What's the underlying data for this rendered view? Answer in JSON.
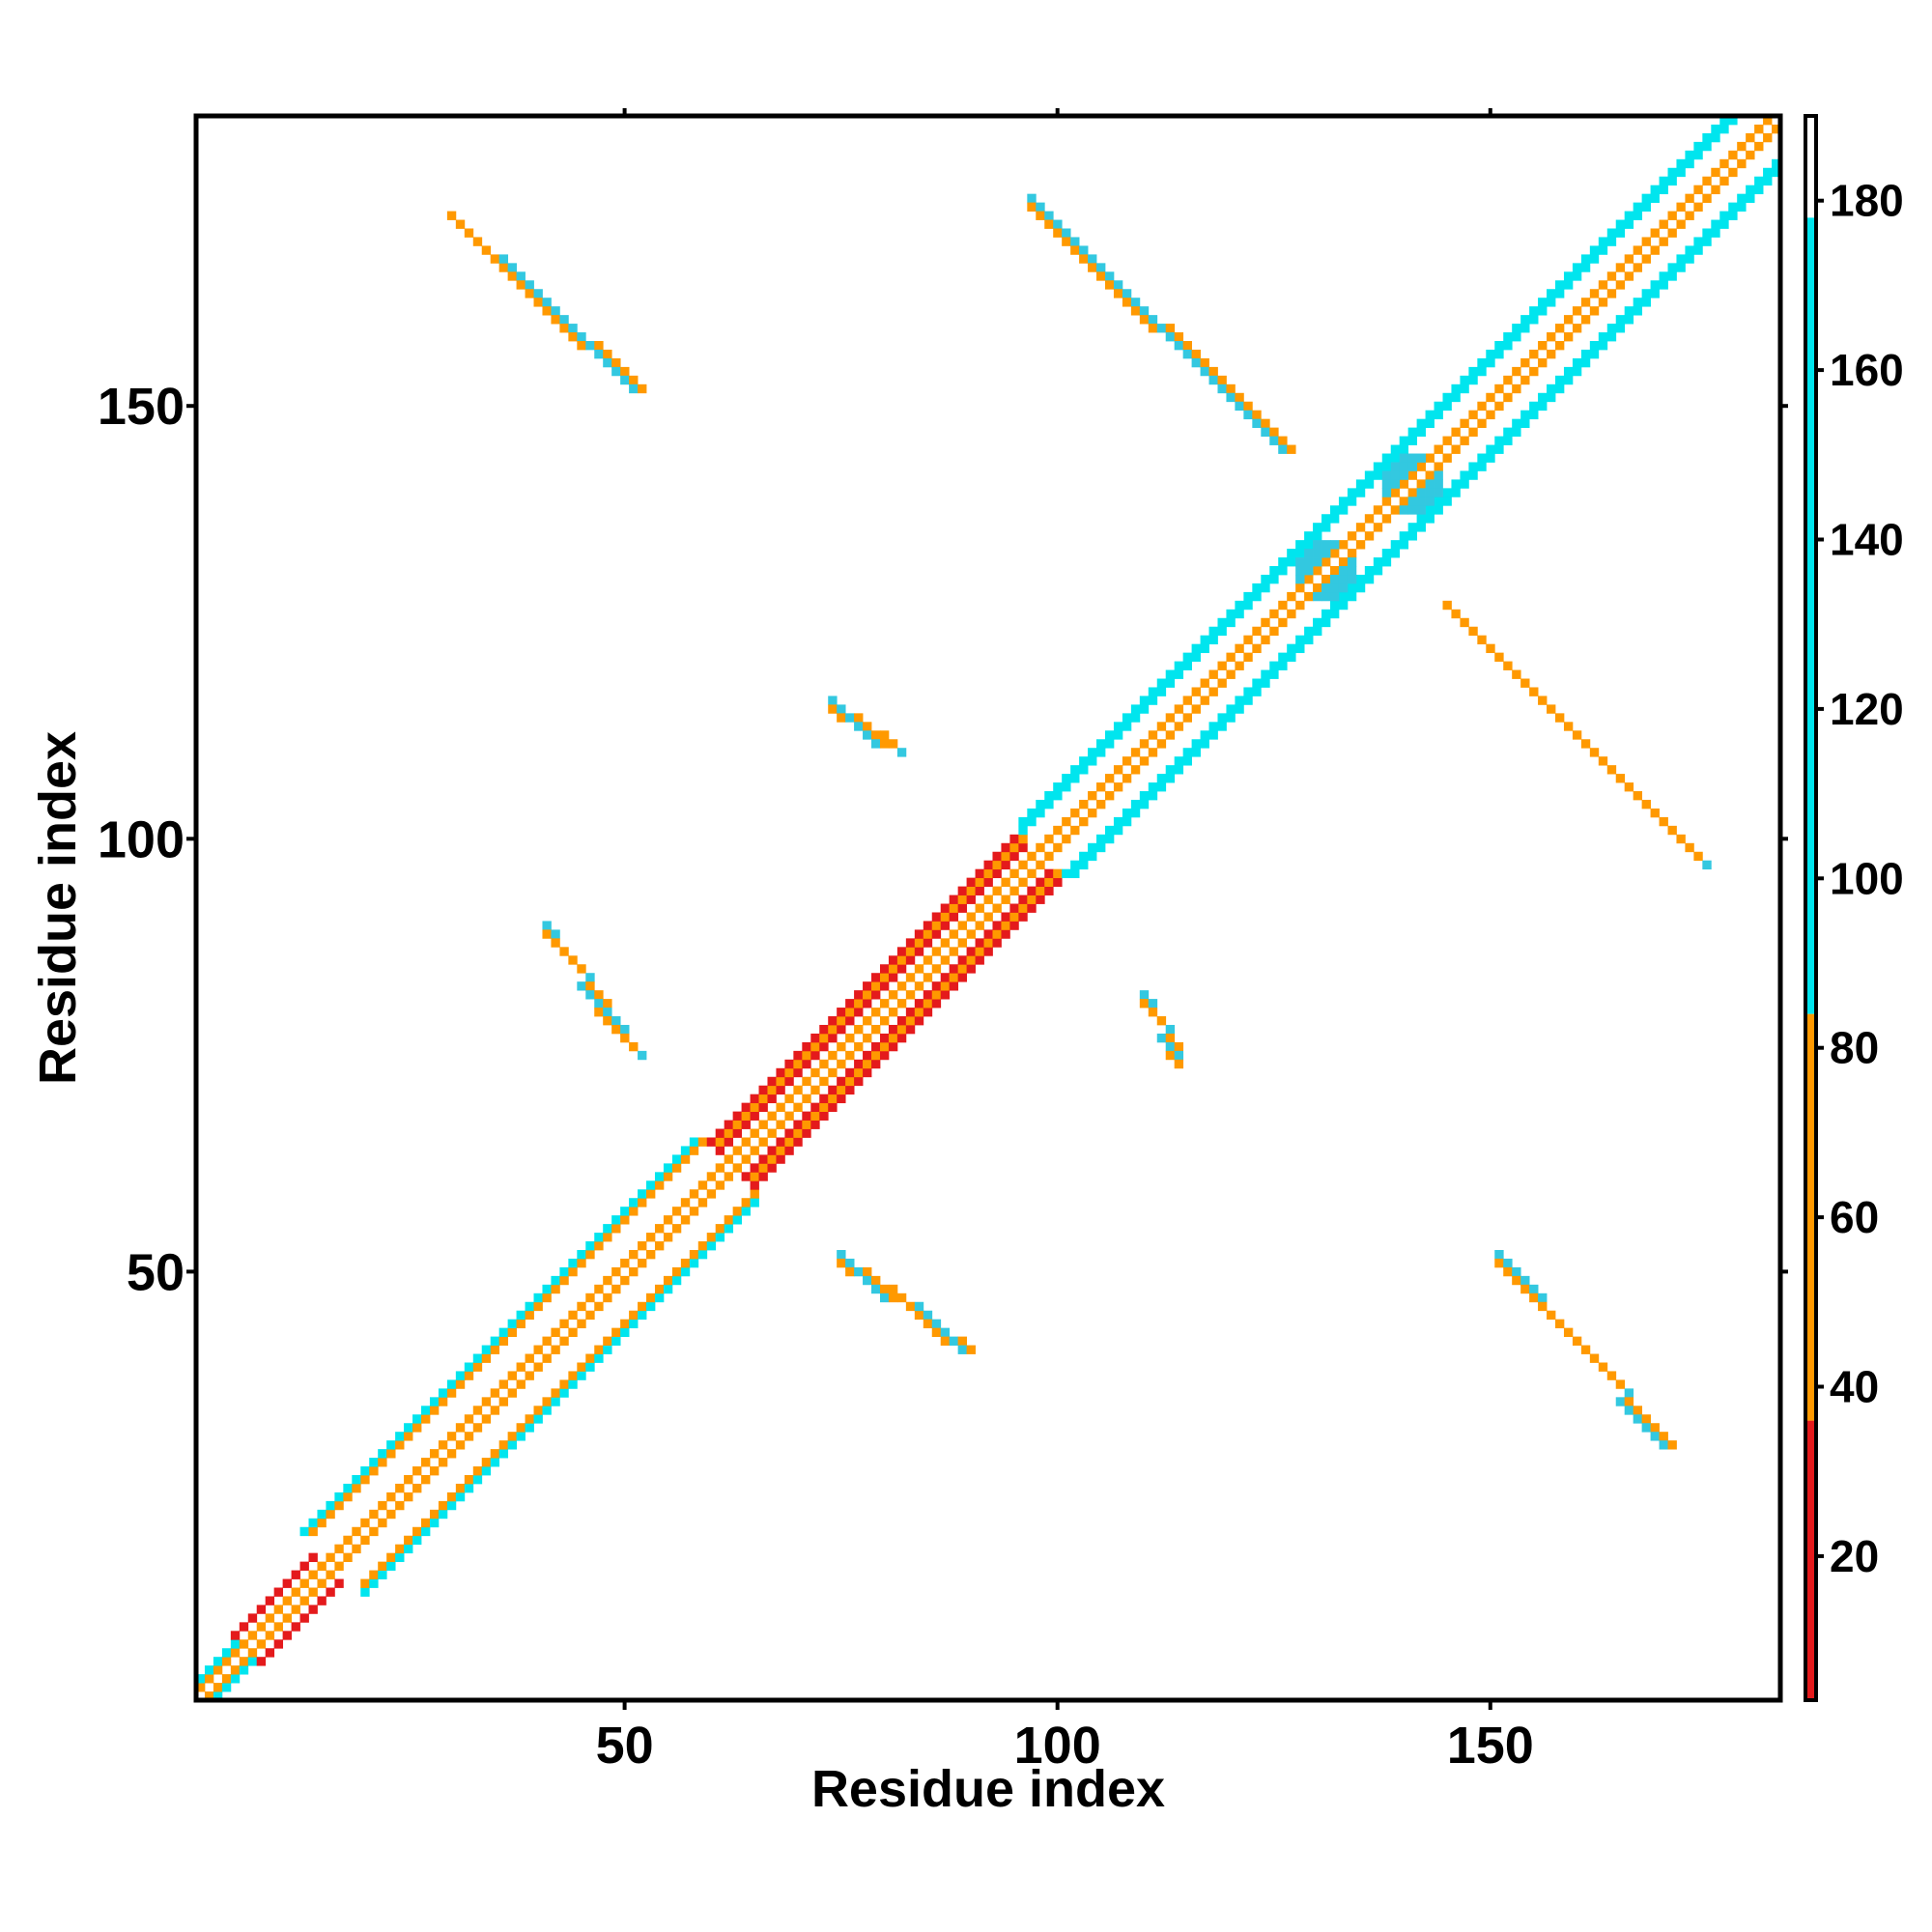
{
  "chart_data": {
    "type": "heatmap",
    "title": "",
    "xlabel": "Residue index",
    "ylabel": "Residue index",
    "xlim": [
      1,
      183
    ],
    "ylim": [
      1,
      183
    ],
    "x_ticks": [
      50,
      100,
      150
    ],
    "y_ticks": [
      50,
      100,
      150
    ],
    "grid": false,
    "colorbar": {
      "position": "right",
      "range": [
        3,
        190
      ],
      "ticks": [
        20,
        40,
        60,
        80,
        100,
        120,
        140,
        160,
        180
      ],
      "bands": [
        {
          "from": 3,
          "to": 36,
          "color": "#e41a1c"
        },
        {
          "from": 36,
          "to": 84,
          "color": "#ff9900"
        },
        {
          "from": 84,
          "to": 178,
          "color": "#00e5ee"
        },
        {
          "from": 178,
          "to": 190,
          "color": "#ffffff"
        }
      ]
    },
    "diagonal": {
      "from": 1,
      "to": 183,
      "segments": [
        {
          "from": 1,
          "to": 6,
          "half_width": 2,
          "palette": "cyan-orange"
        },
        {
          "from": 6,
          "to": 16,
          "half_width": 3,
          "palette": "red-orange"
        },
        {
          "from": 16,
          "to": 62,
          "half_width": 7,
          "palette": "sheet"
        },
        {
          "from": 62,
          "to": 98,
          "half_width": 5,
          "palette": "red-orange"
        },
        {
          "from": 98,
          "to": 140,
          "half_width": 6,
          "palette": "sheet"
        },
        {
          "from": 140,
          "to": 183,
          "half_width": 6,
          "palette": "sheet"
        }
      ]
    },
    "contact_blobs": [
      {
        "x": [
          30,
          51
        ],
        "y": [
          152,
          171
        ],
        "orientation": "anti"
      },
      {
        "x": [
          97,
          126
        ],
        "y": [
          145,
          173
        ],
        "orientation": "anti"
      },
      {
        "x": [
          145,
          174
        ],
        "y": [
          97,
          126
        ],
        "orientation": "anti"
      },
      {
        "x": [
          151,
          170
        ],
        "y": [
          30,
          51
        ],
        "orientation": "anti"
      },
      {
        "x": [
          74,
          81
        ],
        "y": [
          110,
          115
        ],
        "orientation": "anti"
      },
      {
        "x": [
          110,
          114
        ],
        "y": [
          74,
          81
        ],
        "orientation": "anti"
      },
      {
        "x": [
          41,
          51
        ],
        "y": [
          75,
          89
        ],
        "orientation": "anti"
      },
      {
        "x": [
          75,
          89
        ],
        "y": [
          41,
          51
        ],
        "orientation": "anti"
      }
    ],
    "hotspots": [
      {
        "x": 131,
        "y": 131,
        "color": "#33c8e0"
      },
      {
        "x": 141,
        "y": 141,
        "color": "#33c8e0"
      }
    ]
  }
}
